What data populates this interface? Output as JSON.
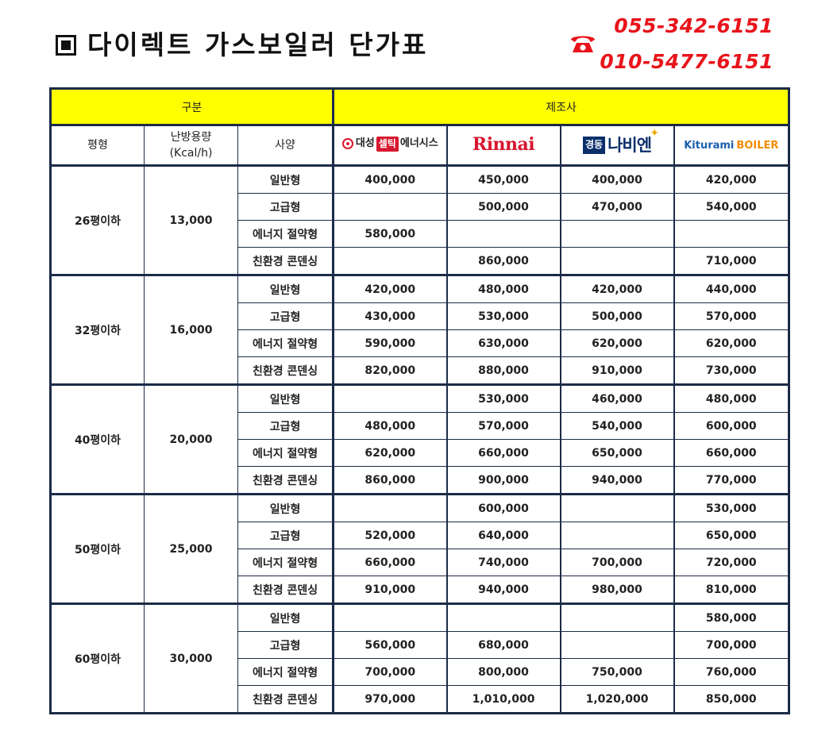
{
  "header": {
    "title": "다이렉트 가스보일러 단가표",
    "phone_icon": "telephone-icon",
    "phone_numbers": [
      "055-342-6151",
      "010-5477-6151"
    ]
  },
  "colors": {
    "header_bg": "#ffff00",
    "border": "#1c2b47",
    "capacity_text": "#f39c12",
    "phone_text": "#e8141b"
  },
  "table": {
    "group_header": "구분",
    "maker_header": "제조사",
    "columns": {
      "area": "평형",
      "capacity": "난방용량",
      "capacity_unit": "(Kcal/h)",
      "spec": "사양"
    },
    "manufacturers": [
      {
        "name": "대성셀틱에너시스",
        "logo_parts": [
          "대성",
          "셀틱",
          "에너시스"
        ]
      },
      {
        "name": "Rinnai",
        "logo_parts": [
          "Rinnai"
        ]
      },
      {
        "name": "경동나비엔",
        "logo_parts": [
          "경동",
          "나비엔"
        ]
      },
      {
        "name": "Kiturami BOILER",
        "logo_parts": [
          "Kiturami",
          "BOILER"
        ]
      }
    ],
    "groups": [
      {
        "area": "26평이하",
        "capacity": "13,000",
        "rows": [
          {
            "spec": "일반형",
            "prices": [
              "400,000",
              "450,000",
              "400,000",
              "420,000"
            ]
          },
          {
            "spec": "고급형",
            "prices": [
              "",
              "500,000",
              "470,000",
              "540,000"
            ]
          },
          {
            "spec": "에너지 절약형",
            "prices": [
              "580,000",
              "",
              "",
              ""
            ]
          },
          {
            "spec": "친환경 콘덴싱",
            "prices": [
              "",
              "860,000",
              "",
              "710,000"
            ]
          }
        ]
      },
      {
        "area": "32평이하",
        "capacity": "16,000",
        "rows": [
          {
            "spec": "일반형",
            "prices": [
              "420,000",
              "480,000",
              "420,000",
              "440,000"
            ]
          },
          {
            "spec": "고급형",
            "prices": [
              "430,000",
              "530,000",
              "500,000",
              "570,000"
            ]
          },
          {
            "spec": "에너지 절약형",
            "prices": [
              "590,000",
              "630,000",
              "620,000",
              "620,000"
            ]
          },
          {
            "spec": "친환경 콘덴싱",
            "prices": [
              "820,000",
              "880,000",
              "910,000",
              "730,000"
            ]
          }
        ]
      },
      {
        "area": "40평이하",
        "capacity": "20,000",
        "rows": [
          {
            "spec": "일반형",
            "prices": [
              "",
              "530,000",
              "460,000",
              "480,000"
            ]
          },
          {
            "spec": "고급형",
            "prices": [
              "480,000",
              "570,000",
              "540,000",
              "600,000"
            ]
          },
          {
            "spec": "에너지 절약형",
            "prices": [
              "620,000",
              "660,000",
              "650,000",
              "660,000"
            ]
          },
          {
            "spec": "친환경 콘덴싱",
            "prices": [
              "860,000",
              "900,000",
              "940,000",
              "770,000"
            ]
          }
        ]
      },
      {
        "area": "50평이하",
        "capacity": "25,000",
        "rows": [
          {
            "spec": "일반형",
            "prices": [
              "",
              "600,000",
              "",
              "530,000"
            ]
          },
          {
            "spec": "고급형",
            "prices": [
              "520,000",
              "640,000",
              "",
              "650,000"
            ]
          },
          {
            "spec": "에너지 절약형",
            "prices": [
              "660,000",
              "740,000",
              "700,000",
              "720,000"
            ]
          },
          {
            "spec": "친환경 콘덴싱",
            "prices": [
              "910,000",
              "940,000",
              "980,000",
              "810,000"
            ]
          }
        ]
      },
      {
        "area": "60평이하",
        "capacity": "30,000",
        "rows": [
          {
            "spec": "일반형",
            "prices": [
              "",
              "",
              "",
              "580,000"
            ]
          },
          {
            "spec": "고급형",
            "prices": [
              "560,000",
              "680,000",
              "",
              "700,000"
            ]
          },
          {
            "spec": "에너지 절약형",
            "prices": [
              "700,000",
              "800,000",
              "750,000",
              "760,000"
            ]
          },
          {
            "spec": "친환경 콘덴싱",
            "prices": [
              "970,000",
              "1,010,000",
              "1,020,000",
              "850,000"
            ]
          }
        ]
      }
    ]
  }
}
